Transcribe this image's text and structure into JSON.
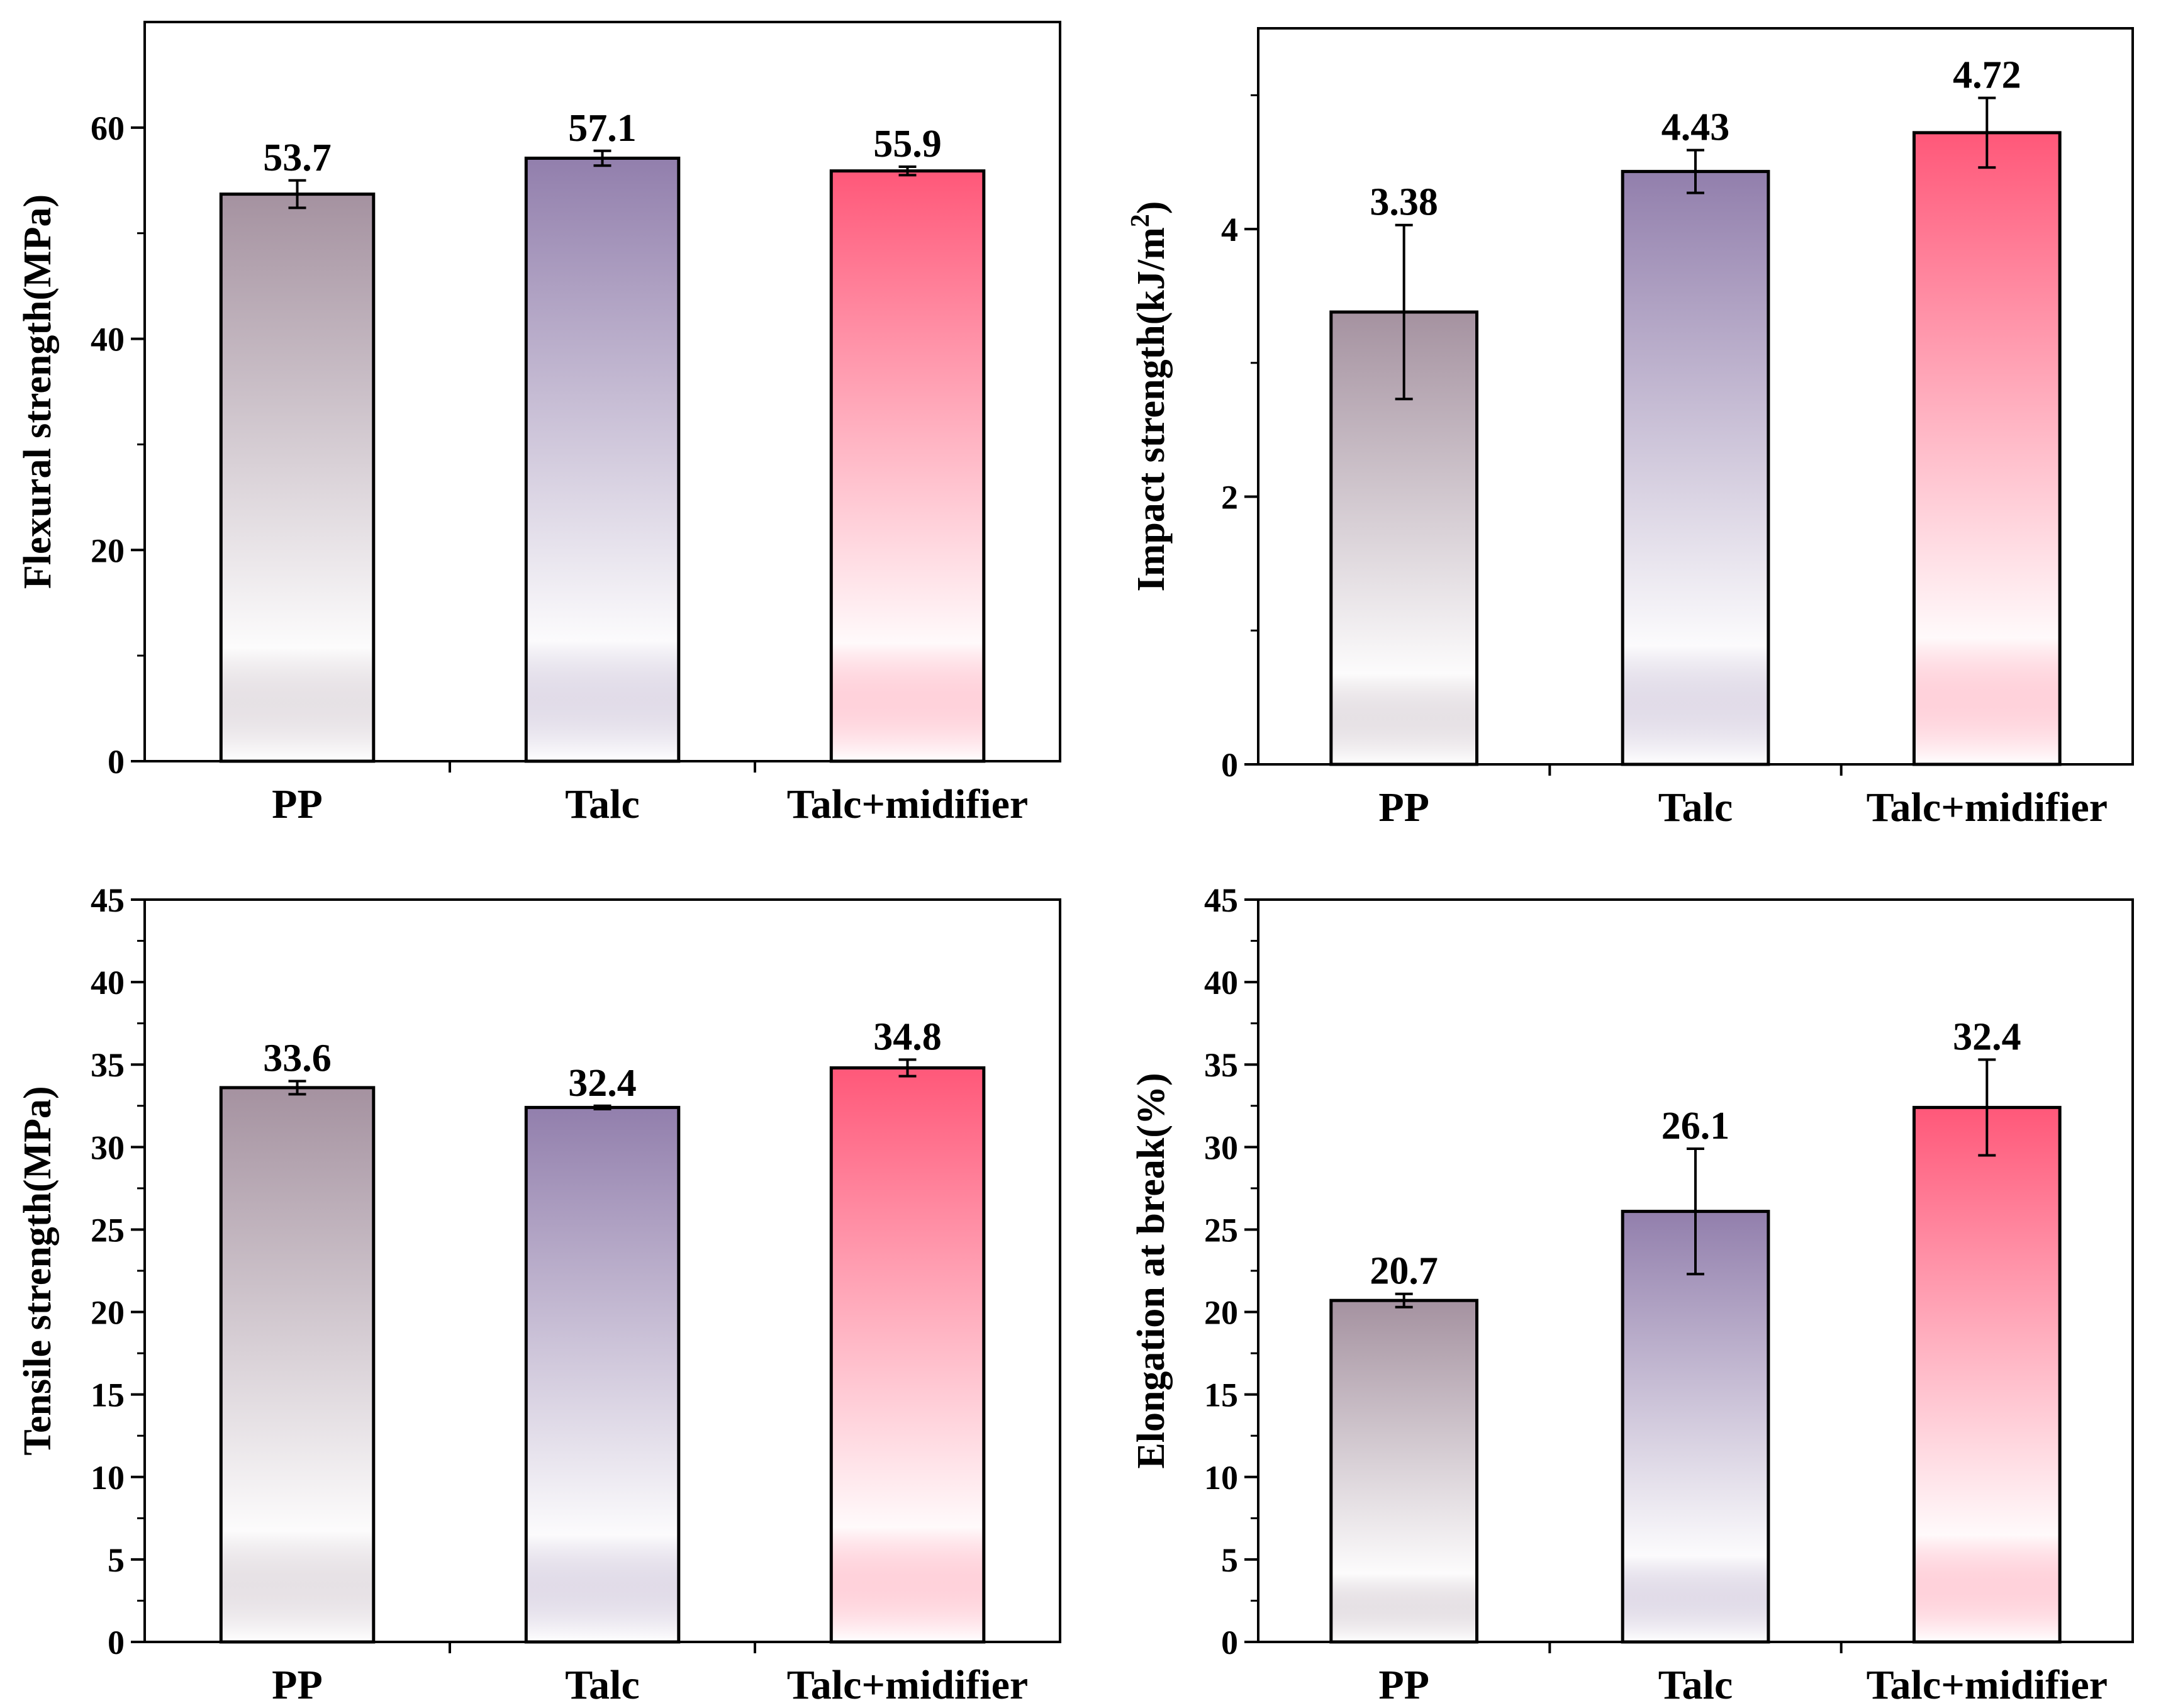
{
  "colors": {
    "PP": "#a08c9b",
    "Talc": "#8c78a8",
    "Talc+midifier": "#ff4f72",
    "axis": "#000000",
    "background": "#ffffff"
  },
  "chart_data": [
    {
      "type": "bar",
      "position": "top-left",
      "categories": [
        "PP",
        "Talc",
        "Talc+midifier"
      ],
      "values": [
        53.7,
        57.1,
        55.9
      ],
      "errors": [
        1.3,
        0.7,
        0.4
      ],
      "data_labels": [
        "53.7",
        "57.1",
        "55.9"
      ],
      "ylabel": "Flexural strength(MPa)",
      "ylim": [
        0,
        70
      ],
      "yticks": [
        0,
        20,
        40,
        60
      ],
      "ytick_labels": [
        "0",
        "20",
        "40",
        "60"
      ],
      "minor_step": 10
    },
    {
      "type": "bar",
      "position": "top-right",
      "categories": [
        "PP",
        "Talc",
        "Talc+midifier"
      ],
      "values": [
        3.38,
        4.43,
        4.72
      ],
      "errors": [
        0.65,
        0.16,
        0.26
      ],
      "data_labels": [
        "3.38",
        "4.43",
        "4.72"
      ],
      "ylabel": "Impact strength(kJ/m",
      "ylabel_sup": "2",
      "ylabel_end": ")",
      "ylim": [
        0,
        5.5
      ],
      "yticks": [
        0,
        2,
        4
      ],
      "ytick_labels": [
        "0",
        "2",
        "4"
      ],
      "minor_step": 1
    },
    {
      "type": "bar",
      "position": "bottom-left",
      "categories": [
        "PP",
        "Talc",
        "Talc+midifier"
      ],
      "values": [
        33.6,
        32.4,
        34.8
      ],
      "errors": [
        0.4,
        0.1,
        0.5
      ],
      "data_labels": [
        "33.6",
        "32.4",
        "34.8"
      ],
      "ylabel": "Tensile strength(MPa)",
      "ylim": [
        0,
        45
      ],
      "yticks": [
        0,
        5,
        10,
        15,
        20,
        25,
        30,
        35,
        40,
        45
      ],
      "ytick_labels": [
        "0",
        "5",
        "10",
        "15",
        "20",
        "25",
        "30",
        "35",
        "40",
        "45"
      ],
      "minor_step": 2.5
    },
    {
      "type": "bar",
      "position": "bottom-right",
      "categories": [
        "PP",
        "Talc",
        "Talc+midifier"
      ],
      "values": [
        20.7,
        26.1,
        32.4
      ],
      "errors": [
        0.4,
        3.8,
        2.9
      ],
      "data_labels": [
        "20.7",
        "26.1",
        "32.4"
      ],
      "ylabel": "Elongation at break(%)",
      "ylim": [
        0,
        45
      ],
      "yticks": [
        0,
        5,
        10,
        15,
        20,
        25,
        30,
        35,
        40,
        45
      ],
      "ytick_labels": [
        "0",
        "5",
        "10",
        "15",
        "20",
        "25",
        "30",
        "35",
        "40",
        "45"
      ],
      "minor_step": 2.5
    }
  ]
}
